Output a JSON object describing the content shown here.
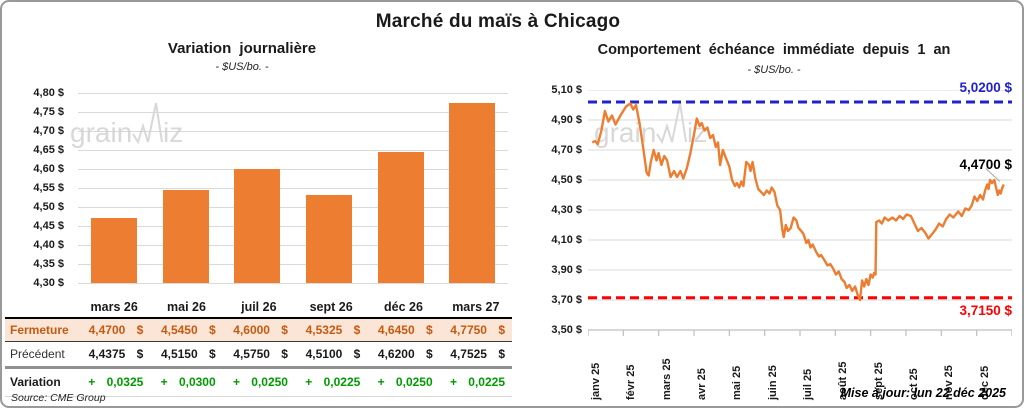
{
  "page": {
    "title": "Marché du maïs à Chicago",
    "source": "Source: CME Group",
    "updated": "Mise à jour: lun 22 déc 2025"
  },
  "colors": {
    "orange": "#ED7D31",
    "fermeture_text": "#C55A11",
    "fermeture_bg": "#FBE5D6",
    "variation_green": "#009B00",
    "grid": "#D9D9D9",
    "axis": "#BFBFBF",
    "watermark": "#D4D4D4",
    "leader": "#A6A6A6"
  },
  "chart_data": [
    {
      "type": "bar",
      "title": "Variation journalière",
      "subtitle": "- $US/bo. -",
      "categories": [
        "mars 26",
        "mai 26",
        "juil 26",
        "sept 26",
        "déc 26",
        "mars 27"
      ],
      "values": [
        4.47,
        4.545,
        4.6,
        4.5325,
        4.645,
        4.775
      ],
      "ylim": [
        4.3,
        4.8
      ],
      "ytick_step": 0.05,
      "ytick_labels": [
        "4,80 $",
        "4,75 $",
        "4,70 $",
        "4,65 $",
        "4,60 $",
        "4,55 $",
        "4,50 $",
        "4,45 $",
        "4,40 $",
        "4,35 $",
        "4,30 $"
      ],
      "bar_color": "#ED7D31",
      "grid": true
    },
    {
      "type": "line",
      "title": "Comportement échéance immédiate depuis 1 an",
      "subtitle": "- $US/bo. -",
      "x_labels": [
        "janv 25",
        "févr 25",
        "mars 25",
        "avr 25",
        "mai 25",
        "juin 25",
        "juil 25",
        "août 25",
        "sept 25",
        "oct 25",
        "nov 25",
        "déc 25"
      ],
      "ylim": [
        3.5,
        5.1
      ],
      "ytick_step": 0.2,
      "ytick_labels": [
        "5,10 $",
        "4,90 $",
        "4,70 $",
        "4,50 $",
        "4,30 $",
        "4,10 $",
        "3,90 $",
        "3,70 $",
        "3,50 $"
      ],
      "line_color": "#ED7D31",
      "grid": true,
      "hlines": [
        {
          "value": 5.02,
          "label": "5,0200 $",
          "color": "#2222CC",
          "style": "dashed"
        },
        {
          "value": 3.715,
          "label": "3,7150 $",
          "color": "#FF0000",
          "style": "dashed"
        }
      ],
      "last_value_label": "4,4700 $",
      "series": [
        {
          "name": "échéance immédiate",
          "points": [
            [
              -0.08,
              4.75
            ],
            [
              0,
              4.76
            ],
            [
              0.08,
              4.74
            ],
            [
              0.18,
              4.83
            ],
            [
              0.28,
              4.96
            ],
            [
              0.38,
              4.89
            ],
            [
              0.48,
              4.93
            ],
            [
              0.58,
              4.87
            ],
            [
              0.72,
              4.93
            ],
            [
              0.88,
              4.99
            ],
            [
              1.0,
              5.01
            ],
            [
              1.08,
              4.97
            ],
            [
              1.16,
              5.0
            ],
            [
              1.26,
              4.88
            ],
            [
              1.36,
              4.72
            ],
            [
              1.46,
              4.55
            ],
            [
              1.52,
              4.53
            ],
            [
              1.58,
              4.62
            ],
            [
              1.66,
              4.7
            ],
            [
              1.74,
              4.63
            ],
            [
              1.8,
              4.68
            ],
            [
              1.88,
              4.6
            ],
            [
              1.96,
              4.66
            ],
            [
              2.04,
              4.63
            ],
            [
              2.14,
              4.52
            ],
            [
              2.24,
              4.56
            ],
            [
              2.32,
              4.52
            ],
            [
              2.42,
              4.56
            ],
            [
              2.5,
              4.51
            ],
            [
              2.6,
              4.58
            ],
            [
              2.7,
              4.68
            ],
            [
              2.8,
              4.8
            ],
            [
              2.88,
              4.91
            ],
            [
              2.96,
              4.86
            ],
            [
              3.02,
              4.88
            ],
            [
              3.1,
              4.83
            ],
            [
              3.18,
              4.85
            ],
            [
              3.26,
              4.78
            ],
            [
              3.34,
              4.8
            ],
            [
              3.42,
              4.72
            ],
            [
              3.48,
              4.75
            ],
            [
              3.54,
              4.6
            ],
            [
              3.62,
              4.7
            ],
            [
              3.7,
              4.65
            ],
            [
              3.8,
              4.59
            ],
            [
              3.88,
              4.5
            ],
            [
              3.96,
              4.46
            ],
            [
              4.02,
              4.48
            ],
            [
              4.08,
              4.45
            ],
            [
              4.14,
              4.49
            ],
            [
              4.2,
              4.46
            ],
            [
              4.28,
              4.62
            ],
            [
              4.36,
              4.6
            ],
            [
              4.4,
              4.56
            ],
            [
              4.46,
              4.62
            ],
            [
              4.54,
              4.51
            ],
            [
              4.62,
              4.44
            ],
            [
              4.7,
              4.42
            ],
            [
              4.78,
              4.4
            ],
            [
              4.86,
              4.43
            ],
            [
              4.94,
              4.41
            ],
            [
              5.0,
              4.45
            ],
            [
              5.08,
              4.42
            ],
            [
              5.16,
              4.33
            ],
            [
              5.24,
              4.3
            ],
            [
              5.3,
              4.17
            ],
            [
              5.34,
              4.12
            ],
            [
              5.4,
              4.2
            ],
            [
              5.46,
              4.16
            ],
            [
              5.54,
              4.18
            ],
            [
              5.62,
              4.25
            ],
            [
              5.7,
              4.23
            ],
            [
              5.76,
              4.18
            ],
            [
              5.84,
              4.16
            ],
            [
              5.9,
              4.14
            ],
            [
              5.98,
              4.08
            ],
            [
              6.04,
              4.1
            ],
            [
              6.1,
              4.05
            ],
            [
              6.16,
              4.07
            ],
            [
              6.26,
              4.02
            ],
            [
              6.34,
              3.99
            ],
            [
              6.4,
              4.0
            ],
            [
              6.48,
              3.97
            ],
            [
              6.58,
              3.93
            ],
            [
              6.66,
              3.94
            ],
            [
              6.74,
              3.91
            ],
            [
              6.82,
              3.87
            ],
            [
              6.9,
              3.89
            ],
            [
              6.98,
              3.84
            ],
            [
              7.06,
              3.82
            ],
            [
              7.12,
              3.78
            ],
            [
              7.2,
              3.8
            ],
            [
              7.28,
              3.76
            ],
            [
              7.36,
              3.79
            ],
            [
              7.44,
              3.73
            ],
            [
              7.5,
              3.7
            ],
            [
              7.56,
              3.83
            ],
            [
              7.62,
              3.79
            ],
            [
              7.68,
              3.84
            ],
            [
              7.74,
              3.8
            ],
            [
              7.8,
              3.87
            ],
            [
              7.86,
              3.85
            ],
            [
              7.9,
              3.88
            ],
            [
              7.94,
              3.87
            ],
            [
              7.96,
              4.22
            ],
            [
              8.04,
              4.23
            ],
            [
              8.12,
              4.21
            ],
            [
              8.2,
              4.25
            ],
            [
              8.3,
              4.23
            ],
            [
              8.42,
              4.25
            ],
            [
              8.52,
              4.23
            ],
            [
              8.62,
              4.26
            ],
            [
              8.72,
              4.24
            ],
            [
              8.82,
              4.27
            ],
            [
              8.94,
              4.26
            ],
            [
              9.04,
              4.21
            ],
            [
              9.14,
              4.16
            ],
            [
              9.24,
              4.18
            ],
            [
              9.34,
              4.15
            ],
            [
              9.44,
              4.11
            ],
            [
              9.54,
              4.14
            ],
            [
              9.64,
              4.17
            ],
            [
              9.74,
              4.21
            ],
            [
              9.84,
              4.19
            ],
            [
              9.94,
              4.24
            ],
            [
              10.04,
              4.27
            ],
            [
              10.14,
              4.25
            ],
            [
              10.28,
              4.29
            ],
            [
              10.38,
              4.26
            ],
            [
              10.48,
              4.31
            ],
            [
              10.58,
              4.3
            ],
            [
              10.66,
              4.33
            ],
            [
              10.74,
              4.39
            ],
            [
              10.82,
              4.36
            ],
            [
              10.9,
              4.4
            ],
            [
              10.98,
              4.37
            ],
            [
              11.04,
              4.43
            ],
            [
              11.1,
              4.47
            ],
            [
              11.14,
              4.44
            ],
            [
              11.18,
              4.5
            ],
            [
              11.24,
              4.48
            ],
            [
              11.3,
              4.5
            ],
            [
              11.36,
              4.44
            ],
            [
              11.4,
              4.4
            ],
            [
              11.44,
              4.43
            ],
            [
              11.48,
              4.41
            ],
            [
              11.53,
              4.45
            ],
            [
              11.57,
              4.47
            ]
          ]
        }
      ]
    }
  ],
  "table": {
    "columns": [
      "mars 26",
      "mai 26",
      "juil 26",
      "sept 26",
      "déc 26",
      "mars 27"
    ],
    "rows": [
      {
        "label": "Fermeture",
        "values": [
          "4,4700 $",
          "4,5450 $",
          "4,6000 $",
          "4,5325 $",
          "4,6450 $",
          "4,7750 $"
        ]
      },
      {
        "label": "Précédent",
        "values": [
          "4,4375 $",
          "4,5150 $",
          "4,5750 $",
          "4,5100 $",
          "4,6200 $",
          "4,7525 $"
        ]
      },
      {
        "label": "Variation",
        "values": [
          "+ 0,0325",
          "+ 0,0300",
          "+ 0,0250",
          "+ 0,0225",
          "+ 0,0250",
          "+ 0,0225"
        ]
      }
    ]
  },
  "watermark": {
    "text_left": "grain",
    "text_right": "iz"
  }
}
